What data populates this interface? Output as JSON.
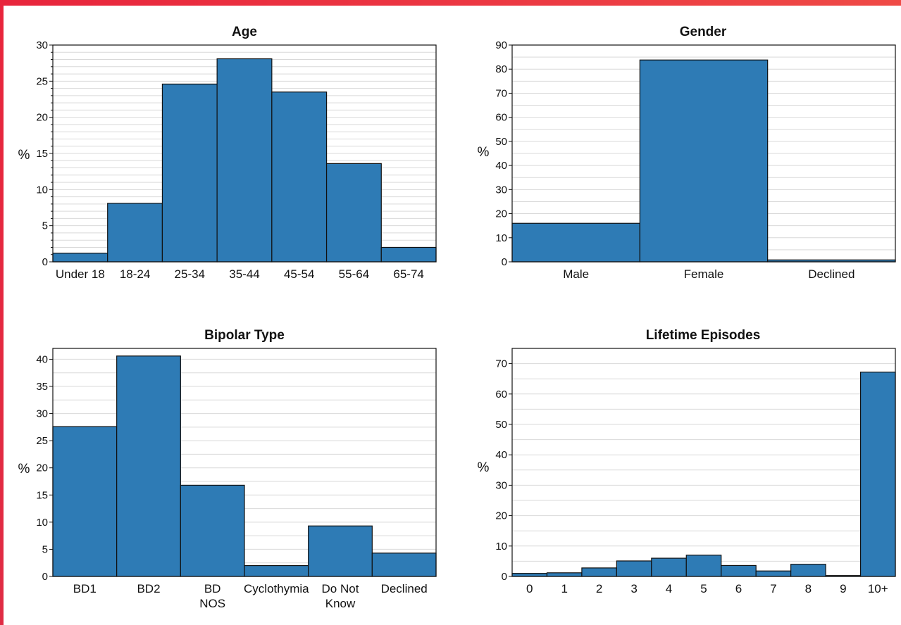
{
  "chart_data": [
    {
      "type": "bar",
      "title": "Age",
      "ylabel": "%",
      "xlabel": "",
      "categories": [
        "Under 18",
        "18-24",
        "25-34",
        "35-44",
        "45-54",
        "55-64",
        "65-74"
      ],
      "values": [
        1.2,
        8.1,
        24.6,
        28.1,
        23.5,
        13.6,
        2.0
      ],
      "ylim": [
        0,
        30
      ],
      "yticks": [
        0,
        5,
        10,
        15,
        20,
        25,
        30
      ],
      "grid": true,
      "bar_color": "#2e7bb5"
    },
    {
      "type": "bar",
      "title": "Gender",
      "ylabel": "%",
      "xlabel": "",
      "categories": [
        "Male",
        "Female",
        "Declined"
      ],
      "values": [
        16.0,
        83.8,
        0.8
      ],
      "ylim": [
        0,
        90
      ],
      "yticks": [
        0,
        10,
        20,
        30,
        40,
        50,
        60,
        70,
        80,
        90
      ],
      "grid": true,
      "bar_color": "#2e7bb5"
    },
    {
      "type": "bar",
      "title": "Bipolar Type",
      "ylabel": "%",
      "xlabel": "",
      "categories": [
        "BD1",
        "BD2",
        "BD NOS",
        "Cyclothymia",
        "Do Not Know",
        "Declined"
      ],
      "values": [
        27.6,
        40.6,
        16.8,
        2.0,
        9.3,
        4.3
      ],
      "ylim": [
        0,
        42
      ],
      "yticks": [
        0,
        5,
        10,
        15,
        20,
        25,
        30,
        35,
        40
      ],
      "grid": true,
      "bar_color": "#2e7bb5"
    },
    {
      "type": "bar",
      "title": "Lifetime Episodes",
      "ylabel": "%",
      "xlabel": "",
      "categories": [
        "0",
        "1",
        "2",
        "3",
        "4",
        "5",
        "6",
        "7",
        "8",
        "9",
        "10+"
      ],
      "values": [
        1.0,
        1.2,
        2.8,
        5.1,
        6.0,
        7.0,
        3.6,
        1.8,
        4.0,
        0.3,
        67.2
      ],
      "ylim": [
        0,
        75
      ],
      "yticks": [
        0,
        10,
        20,
        30,
        40,
        50,
        60,
        70
      ],
      "grid": true,
      "bar_color": "#2e7bb5"
    }
  ]
}
